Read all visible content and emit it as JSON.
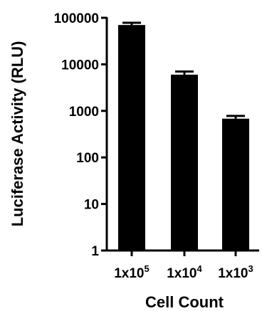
{
  "chart_data": {
    "type": "bar",
    "title": "",
    "xlabel": "Cell Count",
    "ylabel": "Luciferase Activity (RLU)",
    "yscale": "log",
    "ylim": [
      1,
      100000
    ],
    "yticks": [
      {
        "value": 1,
        "label": "1"
      },
      {
        "value": 10,
        "label": "10"
      },
      {
        "value": 100,
        "label": "100"
      },
      {
        "value": 1000,
        "label": "1000"
      },
      {
        "value": 10000,
        "label": "10000"
      },
      {
        "value": 100000,
        "label": "100000"
      }
    ],
    "categories": [
      {
        "base": "1x10",
        "exp": "5"
      },
      {
        "base": "1x10",
        "exp": "4"
      },
      {
        "base": "1x10",
        "exp": "3"
      }
    ],
    "values": [
      70000,
      6000,
      680
    ],
    "errors": [
      8000,
      1000,
      100
    ],
    "bar_color": "#000000",
    "grid": false,
    "legend": "none"
  }
}
